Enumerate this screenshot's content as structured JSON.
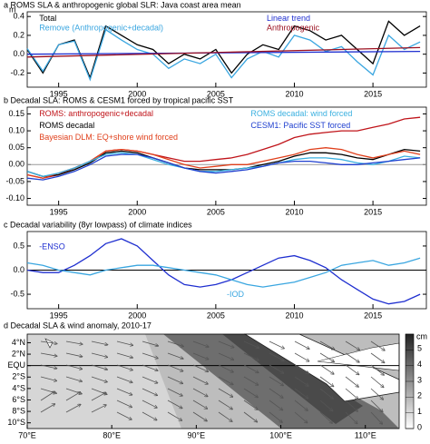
{
  "chart_data": [
    {
      "type": "line",
      "title": "a ROMS SLA & anthropogenic global SLR: Java coast area mean",
      "y_unit": "m",
      "x": [
        1993,
        1994,
        1995,
        1996,
        1997,
        1998,
        1999,
        2000,
        2001,
        2002,
        2003,
        2004,
        2005,
        2006,
        2007,
        2008,
        2009,
        2010,
        2011,
        2012,
        2013,
        2014,
        2015,
        2016,
        2017,
        2018
      ],
      "xlim": [
        1993,
        2018.4
      ],
      "xticks": [
        1995,
        2000,
        2005,
        2010,
        2015
      ],
      "ylim": [
        -0.35,
        0.45
      ],
      "yticks": [
        {
          "value": -0.2,
          "label": "-0.2"
        },
        {
          "value": 0,
          "label": "0.0"
        },
        {
          "value": 0.2,
          "label": "0.2"
        },
        {
          "value": 0.4,
          "label": "0.4"
        }
      ],
      "series": [
        {
          "name": "Total",
          "color": "#000000",
          "values": [
            0.05,
            -0.2,
            0.1,
            0.15,
            -0.25,
            0.3,
            0.2,
            0.1,
            0.05,
            -0.1,
            0.0,
            -0.05,
            0.05,
            -0.2,
            0.0,
            0.1,
            0.05,
            0.3,
            0.25,
            0.15,
            0.2,
            0.05,
            -0.1,
            0.35,
            0.2,
            0.3
          ]
        },
        {
          "name": "Remove (Anthropogenic+decadal)",
          "color": "#3aa6e0",
          "values": [
            0.06,
            -0.18,
            0.1,
            0.14,
            -0.27,
            0.26,
            0.15,
            0.05,
            0.0,
            -0.15,
            -0.05,
            -0.1,
            0.0,
            -0.25,
            -0.05,
            0.03,
            -0.03,
            0.2,
            0.15,
            0.03,
            0.08,
            -0.08,
            -0.22,
            0.2,
            0.05,
            0.13
          ]
        },
        {
          "name": "Linear trend",
          "color": "#1f2fd0",
          "x": [
            1993,
            2018
          ],
          "values": [
            0.0,
            0.03
          ]
        },
        {
          "name": "Anthropogenic",
          "color": "#9b1020",
          "x": [
            1993,
            2018
          ],
          "values": [
            -0.03,
            0.07
          ]
        }
      ]
    },
    {
      "type": "line",
      "title": "b Decadal SLA: ROMS & CESM1 forced by tropical pacific SST",
      "x": [
        1993,
        1994,
        1995,
        1996,
        1997,
        1998,
        1999,
        2000,
        2001,
        2002,
        2003,
        2004,
        2005,
        2006,
        2007,
        2008,
        2009,
        2010,
        2011,
        2012,
        2013,
        2014,
        2015,
        2016,
        2017,
        2018
      ],
      "xlim": [
        1993,
        2018.4
      ],
      "xticks": [
        1995,
        2000,
        2005,
        2010,
        2015
      ],
      "ylim": [
        -0.12,
        0.17
      ],
      "yticks": [
        {
          "value": -0.1,
          "label": "-0.10"
        },
        {
          "value": -0.05,
          "label": "-0.05"
        },
        {
          "value": 0,
          "label": "0.00"
        },
        {
          "value": 0.05,
          "label": "0.05"
        },
        {
          "value": 0.1,
          "label": "0.10"
        },
        {
          "value": 0.15,
          "label": "0.15"
        }
      ],
      "zero_line": "#999999",
      "series": [
        {
          "name": "ROMS: anthropogenic+decadal",
          "color": "#c0141a",
          "values": [
            -0.03,
            -0.04,
            -0.03,
            -0.01,
            0.01,
            0.04,
            0.045,
            0.04,
            0.03,
            0.02,
            0.01,
            0.01,
            0.015,
            0.02,
            0.03,
            0.045,
            0.06,
            0.08,
            0.09,
            0.095,
            0.1,
            0.1,
            0.11,
            0.12,
            0.135,
            0.14
          ]
        },
        {
          "name": "ROMS decadal",
          "color": "#000000",
          "values": [
            -0.02,
            -0.035,
            -0.03,
            -0.015,
            0.005,
            0.035,
            0.04,
            0.035,
            0.02,
            0.005,
            -0.01,
            -0.015,
            -0.015,
            -0.015,
            -0.01,
            0.0,
            0.01,
            0.025,
            0.035,
            0.035,
            0.03,
            0.02,
            0.015,
            0.03,
            0.045,
            0.04
          ]
        },
        {
          "name": "Bayesian DLM: EQ+shore wind forced",
          "color": "#e0401c",
          "values": [
            -0.03,
            -0.04,
            -0.025,
            -0.01,
            0.01,
            0.04,
            0.045,
            0.04,
            0.03,
            0.015,
            0.0,
            -0.01,
            -0.005,
            0.0,
            0.0,
            0.01,
            0.02,
            0.03,
            0.045,
            0.05,
            0.045,
            0.03,
            0.02,
            0.03,
            0.04,
            0.03
          ]
        },
        {
          "name": "ROMS decadal: wind forced",
          "color": "#3ab0e0",
          "values": [
            -0.02,
            -0.035,
            -0.025,
            -0.01,
            0.01,
            0.03,
            0.035,
            0.03,
            0.015,
            0.0,
            -0.01,
            -0.02,
            -0.02,
            -0.015,
            -0.01,
            -0.005,
            0.005,
            0.015,
            0.02,
            0.02,
            0.015,
            0.005,
            0.0,
            0.01,
            0.025,
            0.02
          ]
        },
        {
          "name": "CESM1: Pacific SST forced",
          "color": "#1f3fcf",
          "values": [
            -0.04,
            -0.045,
            -0.035,
            -0.02,
            0.0,
            0.025,
            0.03,
            0.03,
            0.02,
            0.005,
            -0.01,
            -0.02,
            -0.025,
            -0.02,
            -0.015,
            -0.005,
            0.005,
            0.01,
            0.01,
            0.005,
            0.0,
            0.0,
            0.005,
            0.01,
            0.015,
            0.02
          ]
        }
      ]
    },
    {
      "type": "line",
      "title": "c Decadal variability (8yr lowpass) of climate indices",
      "x": [
        1993,
        1994,
        1995,
        1996,
        1997,
        1998,
        1999,
        2000,
        2001,
        2002,
        2003,
        2004,
        2005,
        2006,
        2007,
        2008,
        2009,
        2010,
        2011,
        2012,
        2013,
        2014,
        2015,
        2016,
        2017,
        2018
      ],
      "xlim": [
        1993,
        2018.4
      ],
      "xticks": [
        1995,
        2000,
        2005,
        2010,
        2015
      ],
      "ylim": [
        -0.8,
        0.8
      ],
      "yticks": [
        {
          "value": -0.5,
          "label": "-0.5"
        },
        {
          "value": 0,
          "label": "0.0"
        },
        {
          "value": 0.5,
          "label": "0.5"
        }
      ],
      "zero_line": "#000000",
      "series": [
        {
          "name": "-ENSO",
          "color": "#1f2fd0",
          "values": [
            0.0,
            -0.05,
            -0.05,
            0.1,
            0.3,
            0.55,
            0.65,
            0.5,
            0.2,
            -0.1,
            -0.3,
            -0.35,
            -0.3,
            -0.2,
            -0.05,
            0.1,
            0.25,
            0.3,
            0.2,
            0.05,
            -0.2,
            -0.4,
            -0.6,
            -0.7,
            -0.65,
            -0.5
          ]
        },
        {
          "name": "-IOD",
          "color": "#3aa6e0",
          "values": [
            0.15,
            0.1,
            0.0,
            -0.05,
            -0.1,
            0.0,
            0.05,
            0.1,
            0.1,
            0.05,
            0.0,
            -0.05,
            -0.1,
            -0.2,
            -0.3,
            -0.35,
            -0.3,
            -0.25,
            -0.15,
            -0.05,
            0.1,
            0.15,
            0.2,
            0.1,
            0.15,
            0.25
          ]
        }
      ]
    },
    {
      "type": "map",
      "title": "d Decadal SLA & wind anomaly, 2010-17",
      "xlim": [
        70,
        114
      ],
      "xticks": [
        {
          "value": 70,
          "label": "70°E"
        },
        {
          "value": 80,
          "label": "80°E"
        },
        {
          "value": 90,
          "label": "90°E"
        },
        {
          "value": 100,
          "label": "100°E"
        },
        {
          "value": 110,
          "label": "110°E"
        }
      ],
      "ylim": [
        -11,
        5.5
      ],
      "yticks": [
        {
          "value": 4,
          "label": "4°N"
        },
        {
          "value": 2,
          "label": "2°N"
        },
        {
          "value": 0,
          "label": "EQU"
        },
        {
          "value": -2,
          "label": "2°S"
        },
        {
          "value": -4,
          "label": "4°S"
        },
        {
          "value": -6,
          "label": "6°S"
        },
        {
          "value": -8,
          "label": "8°S"
        },
        {
          "value": -10,
          "label": "10°S"
        }
      ],
      "colorbar": {
        "label": "cm",
        "lim": [
          0,
          6
        ],
        "ticks": [
          0,
          1,
          2,
          3,
          4,
          5,
          6
        ]
      }
    }
  ]
}
